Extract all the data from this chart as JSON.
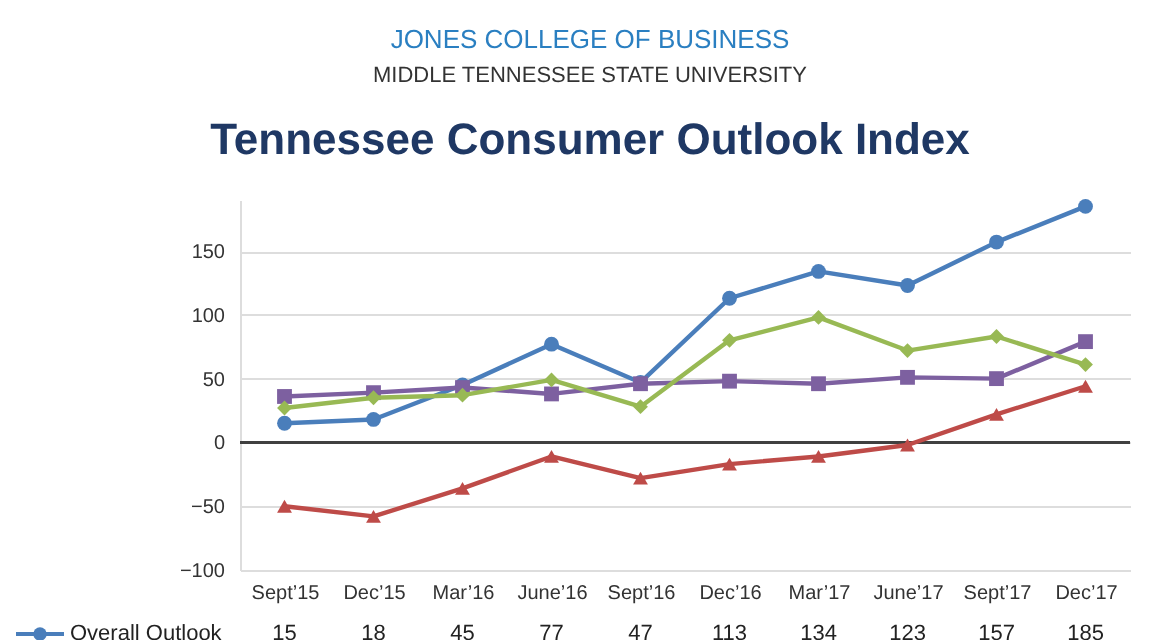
{
  "chart_data": {
    "type": "line",
    "title": "Tennessee Consumer Outlook Index",
    "annotations": [
      "JONES COLLEGE OF BUSINESS",
      "MIDDLE TENNESSEE STATE UNIVERSITY"
    ],
    "categories": [
      "Sept’15",
      "Dec’15",
      "Mar’16",
      "June’16",
      "Sept’16",
      "Dec’16",
      "Mar’17",
      "June’17",
      "Sept’17",
      "Dec’17"
    ],
    "series": [
      {
        "name": "Overall Outlook",
        "color": "#4a7ebb",
        "marker": "circle",
        "values": [
          15,
          18,
          45,
          77,
          47,
          113,
          134,
          123,
          157,
          185
        ],
        "value_labels": [
          "15",
          "18",
          "45",
          "77",
          "47",
          "113",
          "134",
          "123",
          "157",
          "185"
        ]
      },
      {
        "color": "#7d60a0",
        "marker": "square",
        "values": [
          36,
          39,
          43,
          38,
          46,
          48,
          46,
          51,
          50,
          79
        ]
      },
      {
        "color": "#be4b48",
        "marker": "triangle",
        "values": [
          -50,
          -58,
          -36,
          -11,
          -28,
          -17,
          -11,
          -2,
          22,
          44
        ]
      },
      {
        "color": "#98b954",
        "marker": "diamond",
        "values": [
          27,
          35,
          37,
          49,
          28,
          80,
          98,
          72,
          83,
          61
        ]
      }
    ],
    "ylim": [
      -100,
      190
    ],
    "yticks": [
      -100,
      -50,
      0,
      50,
      100,
      150
    ],
    "grid": "y",
    "legend": "bottom left",
    "ref_lines": [
      {
        "axis": "y",
        "value": 0,
        "color": "#404040"
      }
    ]
  }
}
